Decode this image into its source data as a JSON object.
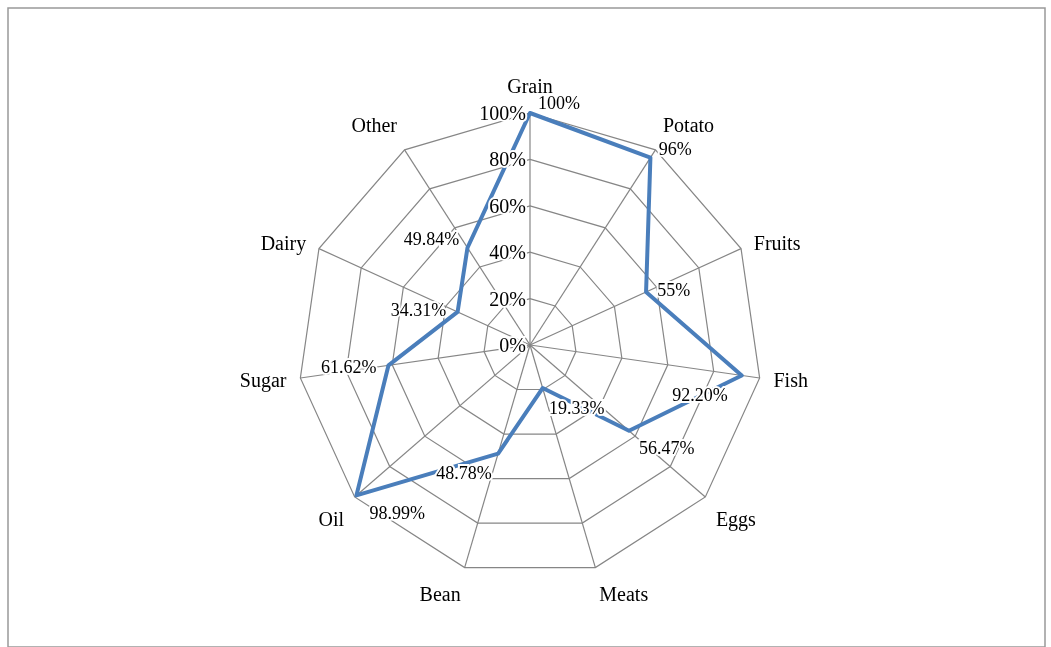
{
  "chart_data": {
    "type": "radar",
    "categories": [
      "Grain",
      "Potato",
      "Fruits",
      "Fish",
      "Eggs",
      "Meats",
      "Bean",
      "Oil",
      "Sugar",
      "Dairy",
      "Other"
    ],
    "series": [
      {
        "color": "#4a7ebb",
        "values": [
          100,
          96,
          55,
          92.2,
          56.47,
          19.33,
          48.78,
          98.99,
          61.62,
          34.31,
          49.84
        ],
        "value_labels": [
          "100%",
          "96%",
          "55%",
          "92.20%",
          "56.47%",
          "19.33%",
          "48.78%",
          "98.99%",
          "61.62%",
          "34.31%",
          "49.84%"
        ]
      }
    ],
    "ylim": [
      0,
      100
    ],
    "yticks": [
      {
        "value": 0,
        "label": "0%"
      },
      {
        "value": 20,
        "label": "20%"
      },
      {
        "value": 40,
        "label": "40%"
      },
      {
        "value": 60,
        "label": "60%"
      },
      {
        "value": 80,
        "label": "80%"
      },
      {
        "value": 100,
        "label": "100%"
      }
    ],
    "grid": true,
    "marker": "none",
    "line_style": "solid"
  }
}
